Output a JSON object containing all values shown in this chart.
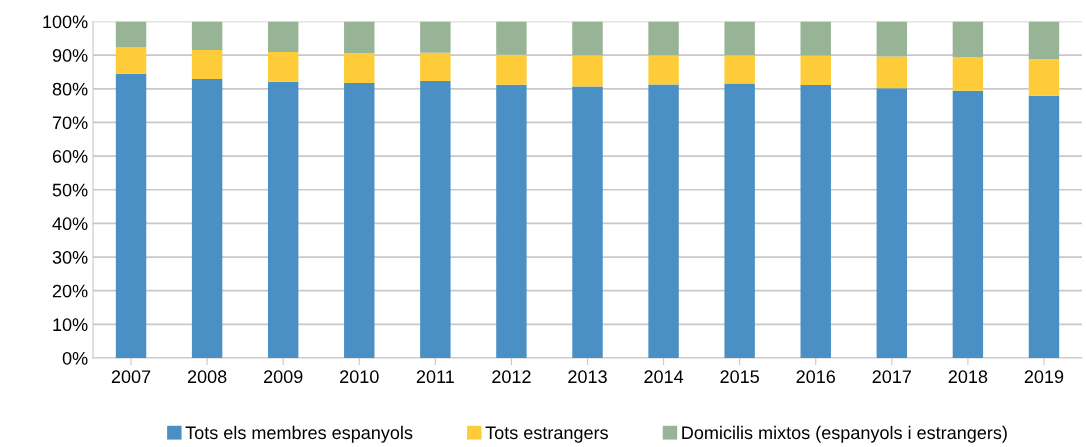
{
  "chart_data": {
    "type": "bar",
    "stacked": true,
    "categories": [
      "2007",
      "2008",
      "2009",
      "2010",
      "2011",
      "2012",
      "2013",
      "2014",
      "2015",
      "2016",
      "2017",
      "2018",
      "2019"
    ],
    "series": [
      {
        "name": "Tots els membres espanyols",
        "color": "#4a90c4",
        "values": [
          84.5,
          82.9,
          82.1,
          81.7,
          82.3,
          81.2,
          80.7,
          81.3,
          81.6,
          81.1,
          80.2,
          79.4,
          77.9
        ]
      },
      {
        "name": "Tots estrangers",
        "color": "#fecc38",
        "values": [
          7.9,
          8.6,
          8.8,
          8.9,
          8.4,
          8.9,
          9.3,
          8.7,
          8.4,
          8.8,
          9.4,
          10.0,
          10.9
        ]
      },
      {
        "name": "Domicilis mixtos (espanyols i estrangers)",
        "color": "#97b497",
        "values": [
          7.6,
          8.5,
          9.1,
          9.4,
          9.3,
          9.9,
          10.0,
          10.0,
          10.0,
          10.1,
          10.4,
          10.6,
          11.2
        ]
      }
    ],
    "ylim": [
      0,
      100
    ],
    "yticks": [
      {
        "value": 0,
        "label": "0%"
      },
      {
        "value": 10,
        "label": "10%"
      },
      {
        "value": 20,
        "label": "20%"
      },
      {
        "value": 30,
        "label": "30%"
      },
      {
        "value": 40,
        "label": "40%"
      },
      {
        "value": 50,
        "label": "50%"
      },
      {
        "value": 60,
        "label": "60%"
      },
      {
        "value": 70,
        "label": "70%"
      },
      {
        "value": 80,
        "label": "80%"
      },
      {
        "value": 90,
        "label": "90%"
      },
      {
        "value": 100,
        "label": "100%"
      }
    ],
    "grid": "y",
    "legend": "bottom"
  }
}
